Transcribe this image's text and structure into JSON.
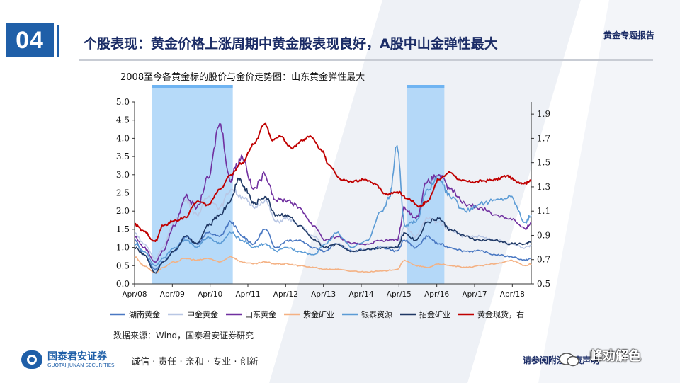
{
  "header": {
    "section_number": "04",
    "title": "个股表现：黄金价格上涨周期中黄金股表现良好，A股中山金弹性最大",
    "tag": "黄金专题报告"
  },
  "colors": {
    "brand": "#1f5fa8",
    "title": "#1b2c66",
    "shade": "#a9d3f8"
  },
  "chart_data": {
    "type": "line",
    "title": "2008至今各黄金标的股价与金价走势图：山东黄金弹性最大",
    "x_ticks": [
      "Apr/08",
      "Apr/09",
      "Apr/10",
      "Apr/11",
      "Apr/12",
      "Apr/13",
      "Apr/14",
      "Apr/15",
      "Apr/16",
      "Apr/17",
      "Apr/18"
    ],
    "x_range": [
      2008.25,
      2018.75
    ],
    "y_left": {
      "min": 0,
      "max": 5,
      "ticks": [
        "0.0",
        "0.5",
        "1.0",
        "1.5",
        "2.0",
        "2.5",
        "3.0",
        "3.5",
        "4.0",
        "4.5",
        "5.0"
      ]
    },
    "y_right": {
      "min": 0.5,
      "max": 2.0,
      "ticks": [
        "0.5",
        "0.7",
        "0.9",
        "1.1",
        "1.3",
        "1.5",
        "1.7",
        "1.9"
      ]
    },
    "shaded_periods": [
      [
        2008.7,
        2010.85
      ],
      [
        2015.45,
        2016.45
      ]
    ],
    "legend_position": "bottom",
    "series": [
      {
        "name": "湖南黄金",
        "color": "#4a78c2",
        "axis": "left",
        "x": [
          2008.25,
          2008.5,
          2008.8,
          2009.0,
          2009.3,
          2009.6,
          2009.9,
          2010.2,
          2010.5,
          2010.8,
          2011.1,
          2011.4,
          2011.7,
          2012.0,
          2012.3,
          2012.6,
          2013.0,
          2013.3,
          2013.6,
          2014.0,
          2014.4,
          2014.8,
          2015.2,
          2015.4,
          2015.7,
          2016.0,
          2016.3,
          2016.6,
          2017.0,
          2017.4,
          2017.8,
          2018.2,
          2018.6,
          2018.75
        ],
        "values": [
          1.2,
          0.8,
          0.4,
          0.6,
          0.9,
          1.3,
          1.1,
          1.4,
          1.3,
          1.7,
          1.3,
          1.1,
          1.5,
          1.0,
          1.2,
          1.2,
          1.0,
          0.9,
          1.1,
          0.9,
          0.95,
          1.0,
          0.9,
          1.2,
          1.0,
          1.3,
          1.1,
          1.0,
          0.9,
          0.9,
          0.8,
          0.75,
          0.65,
          0.7
        ]
      },
      {
        "name": "中金黄金",
        "color": "#b9c7e4",
        "axis": "left",
        "x": [
          2008.25,
          2008.5,
          2008.8,
          2009.0,
          2009.3,
          2009.6,
          2009.9,
          2010.2,
          2010.5,
          2010.8,
          2011.1,
          2011.4,
          2011.7,
          2012.0,
          2012.3,
          2012.6,
          2013.0,
          2013.3,
          2013.6,
          2014.0,
          2014.4,
          2014.8,
          2015.2,
          2015.4,
          2015.7,
          2016.0,
          2016.3,
          2016.6,
          2017.0,
          2017.4,
          2017.8,
          2018.2,
          2018.6,
          2018.75
        ],
        "values": [
          1.4,
          1.1,
          0.7,
          1.0,
          1.7,
          2.3,
          1.9,
          2.4,
          2.1,
          2.6,
          2.4,
          2.1,
          2.3,
          1.7,
          1.8,
          1.6,
          1.3,
          1.0,
          1.1,
          0.9,
          0.95,
          1.0,
          1.0,
          1.6,
          1.3,
          1.8,
          1.7,
          1.5,
          1.3,
          1.3,
          1.2,
          1.1,
          1.0,
          1.05
        ]
      },
      {
        "name": "山东黄金",
        "color": "#7030a0",
        "axis": "left",
        "x": [
          2008.25,
          2008.5,
          2008.8,
          2009.0,
          2009.3,
          2009.6,
          2009.9,
          2010.2,
          2010.5,
          2010.8,
          2010.9,
          2011.1,
          2011.4,
          2011.7,
          2012.0,
          2012.3,
          2012.6,
          2013.0,
          2013.3,
          2013.6,
          2014.0,
          2014.4,
          2014.8,
          2015.2,
          2015.4,
          2015.7,
          2016.0,
          2016.3,
          2016.6,
          2017.0,
          2017.4,
          2017.8,
          2018.2,
          2018.6,
          2018.75
        ],
        "values": [
          1.3,
          1.0,
          0.6,
          0.9,
          1.6,
          2.4,
          2.1,
          2.9,
          4.4,
          2.8,
          3.2,
          3.5,
          2.6,
          3.0,
          2.3,
          2.3,
          2.1,
          1.6,
          1.2,
          1.3,
          1.1,
          1.1,
          1.2,
          1.2,
          2.1,
          1.8,
          2.8,
          3.0,
          2.6,
          2.2,
          2.1,
          1.9,
          1.8,
          1.5,
          1.7
        ]
      },
      {
        "name": "紫金矿业",
        "color": "#f4b183",
        "axis": "left",
        "x": [
          2008.25,
          2008.5,
          2008.8,
          2009.0,
          2009.3,
          2009.6,
          2009.9,
          2010.2,
          2010.5,
          2010.8,
          2011.1,
          2011.4,
          2011.7,
          2012.0,
          2012.3,
          2012.6,
          2013.0,
          2013.3,
          2013.6,
          2014.0,
          2014.4,
          2014.8,
          2015.2,
          2015.4,
          2015.7,
          2016.0,
          2016.3,
          2016.6,
          2017.0,
          2017.4,
          2017.8,
          2018.2,
          2018.6,
          2018.75
        ],
        "values": [
          0.75,
          0.5,
          0.3,
          0.45,
          0.6,
          0.7,
          0.65,
          0.7,
          0.6,
          0.75,
          0.6,
          0.55,
          0.6,
          0.55,
          0.55,
          0.5,
          0.45,
          0.4,
          0.4,
          0.35,
          0.33,
          0.35,
          0.4,
          0.65,
          0.5,
          0.45,
          0.55,
          0.5,
          0.45,
          0.5,
          0.55,
          0.65,
          0.5,
          0.55
        ]
      },
      {
        "name": "银泰资源",
        "color": "#5b9bd5",
        "axis": "left",
        "x": [
          2008.25,
          2008.5,
          2008.8,
          2009.0,
          2009.3,
          2009.6,
          2009.9,
          2010.2,
          2010.5,
          2010.8,
          2011.1,
          2011.4,
          2011.7,
          2012.0,
          2012.3,
          2012.6,
          2013.0,
          2013.3,
          2013.6,
          2014.0,
          2014.4,
          2014.8,
          2015.0,
          2015.2,
          2015.4,
          2015.7,
          2016.0,
          2016.3,
          2016.6,
          2017.0,
          2017.4,
          2017.8,
          2018.2,
          2018.6,
          2018.75
        ],
        "values": [
          1.1,
          0.9,
          0.5,
          0.7,
          1.0,
          1.2,
          1.0,
          1.3,
          1.1,
          1.4,
          1.2,
          1.0,
          1.1,
          0.9,
          1.0,
          0.9,
          0.8,
          1.1,
          1.4,
          1.0,
          1.2,
          2.0,
          2.4,
          3.8,
          1.6,
          1.7,
          2.6,
          2.9,
          2.4,
          2.0,
          2.2,
          2.3,
          2.4,
          1.7,
          1.9
        ]
      },
      {
        "name": "招金矿业",
        "color": "#1f3864",
        "axis": "left",
        "x": [
          2008.25,
          2008.5,
          2008.8,
          2009.0,
          2009.3,
          2009.6,
          2009.9,
          2010.2,
          2010.5,
          2010.8,
          2011.0,
          2011.2,
          2011.4,
          2011.7,
          2012.0,
          2012.3,
          2012.6,
          2013.0,
          2013.3,
          2013.6,
          2014.0,
          2014.4,
          2014.8,
          2015.2,
          2015.4,
          2015.7,
          2016.0,
          2016.3,
          2016.6,
          2017.0,
          2017.4,
          2017.8,
          2018.2,
          2018.6,
          2018.75
        ],
        "values": [
          1.0,
          0.8,
          0.3,
          0.6,
          0.9,
          1.3,
          1.1,
          1.6,
          1.9,
          2.3,
          2.9,
          2.6,
          2.2,
          2.4,
          1.9,
          1.9,
          1.6,
          1.2,
          1.0,
          1.1,
          0.9,
          0.95,
          1.0,
          1.0,
          1.4,
          1.2,
          1.7,
          1.8,
          1.5,
          1.3,
          1.2,
          1.2,
          1.1,
          1.1,
          1.15
        ]
      },
      {
        "name": "黄金现货，右",
        "color": "#c00000",
        "axis": "right",
        "x": [
          2008.25,
          2008.5,
          2008.8,
          2009.0,
          2009.3,
          2009.6,
          2009.9,
          2010.2,
          2010.5,
          2010.8,
          2011.1,
          2011.4,
          2011.7,
          2011.9,
          2012.1,
          2012.4,
          2012.7,
          2012.9,
          2013.2,
          2013.4,
          2013.7,
          2014.0,
          2014.3,
          2014.6,
          2014.9,
          2015.2,
          2015.5,
          2015.8,
          2016.0,
          2016.3,
          2016.6,
          2016.9,
          2017.2,
          2017.5,
          2017.8,
          2018.1,
          2018.4,
          2018.6,
          2018.75
        ],
        "values": [
          0.99,
          0.93,
          0.85,
          0.98,
          1.02,
          1.05,
          1.18,
          1.15,
          1.28,
          1.4,
          1.5,
          1.65,
          1.82,
          1.68,
          1.72,
          1.62,
          1.68,
          1.72,
          1.6,
          1.48,
          1.36,
          1.34,
          1.36,
          1.33,
          1.24,
          1.26,
          1.2,
          1.14,
          1.18,
          1.36,
          1.42,
          1.35,
          1.34,
          1.35,
          1.36,
          1.39,
          1.34,
          1.33,
          1.36
        ]
      }
    ]
  },
  "footer": {
    "source": "数据来源：Wind，国泰君安证券研究",
    "logo_cn": "国泰君安证券",
    "logo_en": "GUOTAI JUNAN SECURITIES",
    "slogan": "诚信 · 责任 · 亲和 · 专业 · 创新",
    "notice": "请参阅附注免责声明",
    "watermark": "峰劝解色"
  }
}
